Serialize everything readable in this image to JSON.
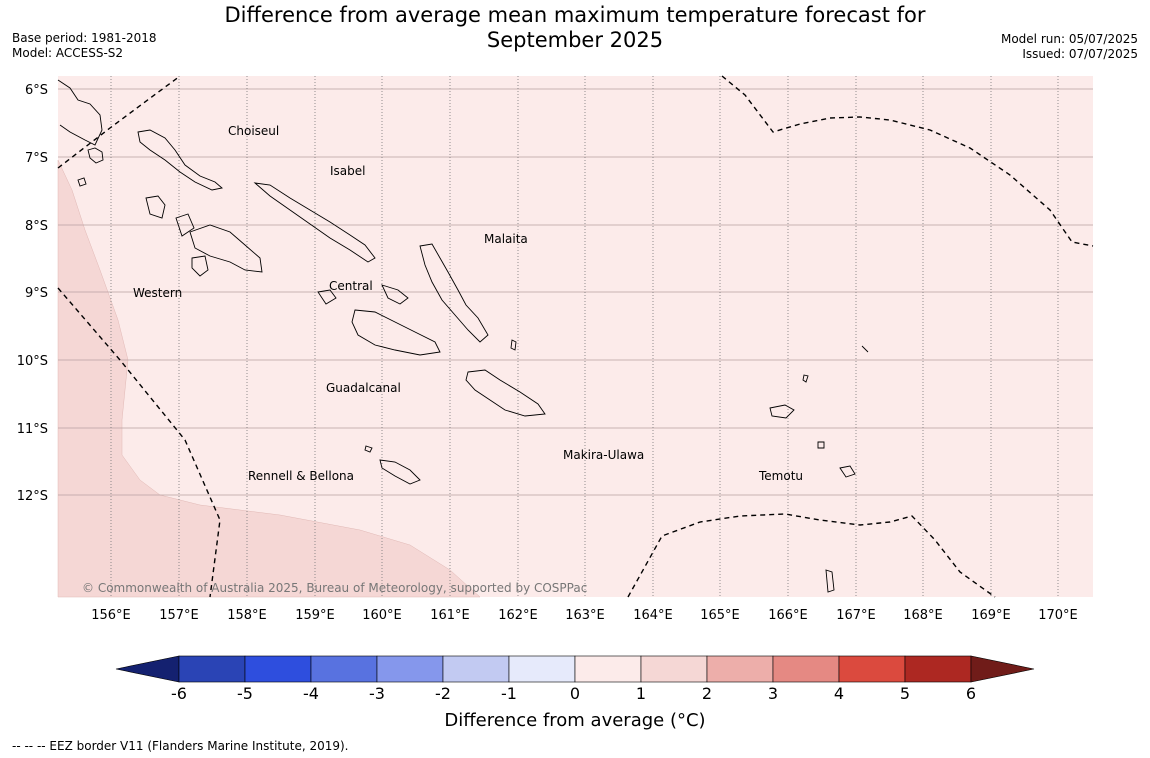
{
  "title": {
    "line1": "Difference from average mean maximum temperature forecast for",
    "line2": "September 2025"
  },
  "meta_left": {
    "base_period": "Base period: 1981-2018",
    "model": "Model: ACCESS-S2"
  },
  "meta_right": {
    "model_run": "Model run: 05/07/2025",
    "issued": "Issued: 07/07/2025"
  },
  "map": {
    "lat_ticks": [
      "6°S",
      "7°S",
      "8°S",
      "9°S",
      "10°S",
      "11°S",
      "12°S"
    ],
    "lon_ticks": [
      "156°E",
      "157°E",
      "158°E",
      "159°E",
      "160°E",
      "161°E",
      "162°E",
      "163°E",
      "164°E",
      "165°E",
      "166°E",
      "167°E",
      "168°E",
      "169°E",
      "170°E"
    ],
    "regions": {
      "choiseul": "Choiseul",
      "isabel": "Isabel",
      "malaita": "Malaita",
      "western": "Western",
      "central": "Central",
      "guadalcanal": "Guadalcanal",
      "makira": "Makira-Ulawa",
      "rennell": "Rennell & Bellona",
      "temotu": "Temotu"
    },
    "copyright": "© Commonwealth of Australia 2025, Bureau of Meteorology, supported by COSPPac",
    "anomaly_classes": [
      {
        "range": "0 to 1",
        "color": "#fcebea"
      },
      {
        "range": "1 to 2",
        "color": "#f5d7d5"
      }
    ]
  },
  "colorbar": {
    "ticks": [
      "-6",
      "-5",
      "-4",
      "-3",
      "-2",
      "-1",
      "0",
      "1",
      "2",
      "3",
      "4",
      "5",
      "6"
    ],
    "colors": [
      "#142170",
      "#2a44b5",
      "#2e4ede",
      "#5872e0",
      "#8597ec",
      "#c2caf2",
      "#e6eafb",
      "#fcebea",
      "#f5d7d5",
      "#edaeaa",
      "#e58983",
      "#db4a3e",
      "#ad2822",
      "#701c19"
    ],
    "label": "Difference from average (°C)"
  },
  "footer": {
    "eez": "--  --  -- EEZ border V11 (Flanders Marine Institute, 2019)."
  }
}
